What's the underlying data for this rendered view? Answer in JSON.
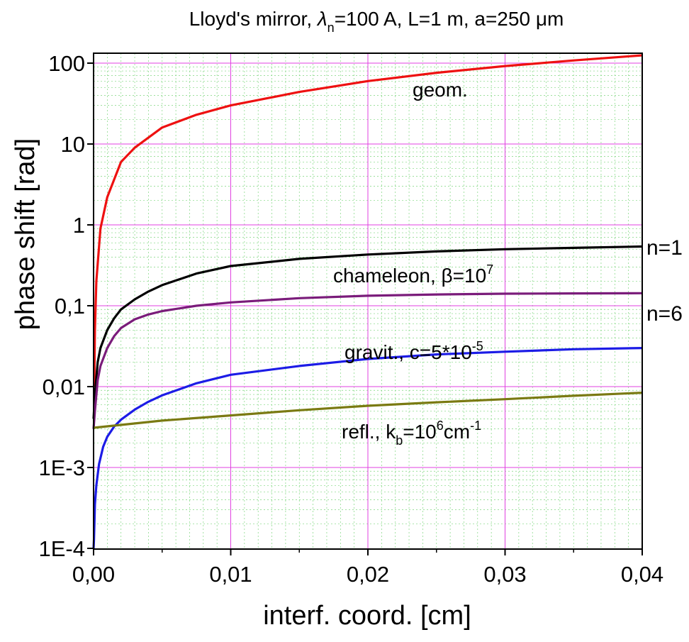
{
  "chart_data": {
    "type": "line",
    "title": {
      "pre": "Lloyd's mirror, ",
      "lambda": "λ",
      "lambda_sub": "n",
      "post": "=100 A, L=1 m, a=250 ",
      "mu": "μ",
      "unit": "m"
    },
    "xlabel": "interf. coord. [cm]",
    "ylabel": "phase shift [rad]",
    "xlim": [
      0,
      0.04
    ],
    "ylim": [
      0.0001,
      150
    ],
    "yscale": "log",
    "grid": true,
    "x_ticks": [
      {
        "value": 0.0,
        "label": "0,00"
      },
      {
        "value": 0.01,
        "label": "0,01"
      },
      {
        "value": 0.02,
        "label": "0,02"
      },
      {
        "value": 0.03,
        "label": "0,03"
      },
      {
        "value": 0.04,
        "label": "0,04"
      }
    ],
    "y_ticks": [
      {
        "value": 0.0001,
        "label": "1E-4"
      },
      {
        "value": 0.001,
        "label": "1E-3"
      },
      {
        "value": 0.01,
        "label": "0,01"
      },
      {
        "value": 0.1,
        "label": "0,1"
      },
      {
        "value": 1,
        "label": "1"
      },
      {
        "value": 10,
        "label": "10"
      },
      {
        "value": 100,
        "label": "100"
      }
    ],
    "colors": {
      "geom": "#ee1111",
      "n1": "#000000",
      "n6": "#7a1c7a",
      "gravit": "#1c1ce6",
      "refl": "#7a7a12",
      "major_grid": "#e040e0",
      "minor_grid": "#7ed67e"
    },
    "series": [
      {
        "key": "geom",
        "x": [
          5e-05,
          0.0001,
          0.0002,
          0.0005,
          0.001,
          0.002,
          0.003,
          0.005,
          0.0075,
          0.01,
          0.015,
          0.02,
          0.025,
          0.03,
          0.035,
          0.04
        ],
        "y": [
          0.01,
          0.05,
          0.2,
          0.9,
          2.2,
          6.0,
          9.0,
          16,
          23,
          30,
          44,
          60,
          76,
          92,
          108,
          125
        ]
      },
      {
        "key": "n1",
        "x": [
          0.0,
          0.0001,
          0.0003,
          0.0005,
          0.001,
          0.0015,
          0.002,
          0.003,
          0.004,
          0.005,
          0.0075,
          0.01,
          0.015,
          0.02,
          0.025,
          0.03,
          0.035,
          0.04
        ],
        "y": [
          0.004,
          0.008,
          0.02,
          0.03,
          0.05,
          0.07,
          0.09,
          0.12,
          0.15,
          0.18,
          0.25,
          0.31,
          0.38,
          0.43,
          0.47,
          0.5,
          0.52,
          0.54
        ]
      },
      {
        "key": "n6",
        "x": [
          0.0,
          0.0001,
          0.0003,
          0.0005,
          0.001,
          0.0015,
          0.002,
          0.003,
          0.004,
          0.005,
          0.0075,
          0.01,
          0.015,
          0.02,
          0.025,
          0.03,
          0.035,
          0.04
        ],
        "y": [
          0.003,
          0.005,
          0.012,
          0.018,
          0.03,
          0.042,
          0.053,
          0.068,
          0.078,
          0.086,
          0.1,
          0.11,
          0.124,
          0.133,
          0.138,
          0.141,
          0.142,
          0.143
        ]
      },
      {
        "key": "gravit",
        "x": [
          0.0,
          3e-05,
          0.0001,
          0.0002,
          0.0004,
          0.0007,
          0.001,
          0.0015,
          0.002,
          0.003,
          0.004,
          0.005,
          0.0075,
          0.01,
          0.015,
          0.02,
          0.025,
          0.03,
          0.035,
          0.04
        ],
        "y": [
          0.0001,
          0.00013,
          0.00035,
          0.0006,
          0.0011,
          0.0018,
          0.0024,
          0.0032,
          0.0039,
          0.0052,
          0.0065,
          0.0078,
          0.011,
          0.014,
          0.018,
          0.022,
          0.025,
          0.027,
          0.029,
          0.03
        ]
      },
      {
        "key": "refl",
        "x": [
          0.0,
          0.005,
          0.01,
          0.015,
          0.02,
          0.025,
          0.03,
          0.035,
          0.04
        ],
        "y": [
          0.0031,
          0.0038,
          0.0044,
          0.0051,
          0.0058,
          0.0064,
          0.007,
          0.0077,
          0.0084
        ]
      }
    ],
    "annotations": {
      "geom": {
        "text": "geom."
      },
      "chameleon": {
        "text": "chameleon, ",
        "greek": "β",
        "mid": "=10",
        "sup": "7"
      },
      "gravit": {
        "text": "gravit., c=5*10",
        "sup": "-5"
      },
      "refl": {
        "text": "refl., k",
        "sub": "b",
        "mid": "=10",
        "sup1": "6",
        "mid2": "cm",
        "sup2": "-1"
      },
      "n1": "n=1",
      "n6": "n=6"
    }
  }
}
